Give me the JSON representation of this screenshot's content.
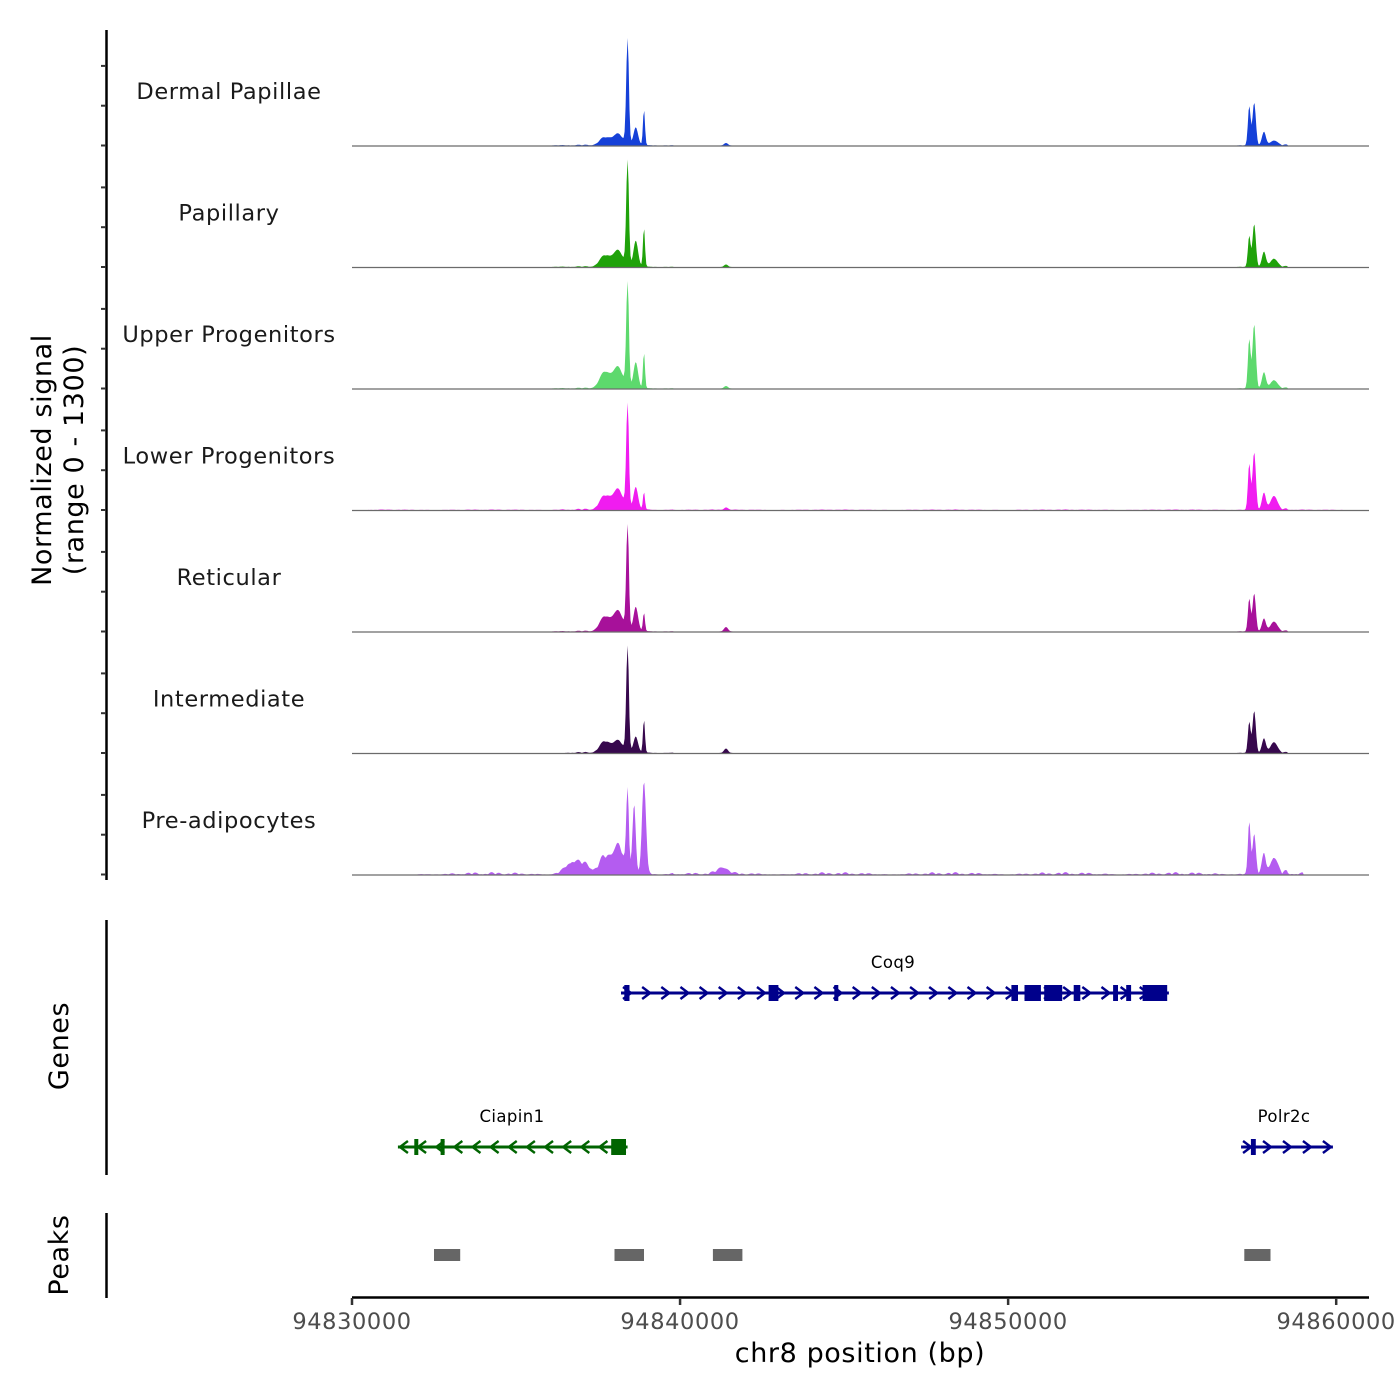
{
  "chart_data": {
    "type": "area",
    "title": "",
    "chrom": "chr8",
    "xlabel": "chr8 position (bp)",
    "xlim": [
      94830000,
      94861000
    ],
    "x_ticks": [
      94830000,
      94840000,
      94850000,
      94860000
    ],
    "x_tick_labels": [
      "94830000",
      "94840000",
      "94850000",
      "94860000"
    ],
    "ylabel_line1": "Normalized signal",
    "ylabel_line2": "(range 0 - 1300)",
    "ylim": [
      0,
      1300
    ],
    "genes_title": "Genes",
    "peaks_title": "Peaks",
    "grid": false,
    "series": [
      {
        "name": "Dermal Papillae",
        "color": "#1540d8",
        "peaks": [
          [
            94837700,
            150,
            90
          ],
          [
            94838100,
            150,
            140
          ],
          [
            94838400,
            40,
            1300
          ],
          [
            94838650,
            70,
            220
          ],
          [
            94838900,
            30,
            440
          ],
          [
            94841400,
            60,
            30
          ],
          [
            94857350,
            40,
            480
          ],
          [
            94857500,
            50,
            520
          ],
          [
            94857800,
            60,
            160
          ],
          [
            94858100,
            100,
            60
          ]
        ],
        "noise_regions": [
          [
            94836000,
            94839800,
            15
          ],
          [
            94856800,
            94858500,
            15
          ]
        ]
      },
      {
        "name": "Papillary",
        "color": "#1fa20a",
        "peaks": [
          [
            94837700,
            150,
            130
          ],
          [
            94838100,
            150,
            200
          ],
          [
            94838400,
            40,
            1300
          ],
          [
            94838650,
            70,
            320
          ],
          [
            94838900,
            30,
            480
          ],
          [
            94841400,
            60,
            30
          ],
          [
            94857350,
            40,
            380
          ],
          [
            94857500,
            50,
            520
          ],
          [
            94857800,
            60,
            180
          ],
          [
            94858100,
            100,
            100
          ]
        ],
        "noise_regions": [
          [
            94836000,
            94839800,
            15
          ],
          [
            94856800,
            94858500,
            15
          ]
        ]
      },
      {
        "name": "Upper Progenitors",
        "color": "#5dd96d",
        "peaks": [
          [
            94837700,
            150,
            190
          ],
          [
            94838100,
            150,
            260
          ],
          [
            94838400,
            40,
            1300
          ],
          [
            94838650,
            70,
            320
          ],
          [
            94838900,
            30,
            440
          ],
          [
            94841400,
            60,
            30
          ],
          [
            94857350,
            40,
            600
          ],
          [
            94857500,
            50,
            780
          ],
          [
            94857800,
            60,
            190
          ],
          [
            94858100,
            100,
            100
          ]
        ],
        "noise_regions": [
          [
            94836000,
            94839800,
            15
          ],
          [
            94856800,
            94858500,
            15
          ]
        ]
      },
      {
        "name": "Lower Progenitors",
        "color": "#f01cf0",
        "peaks": [
          [
            94837700,
            150,
            160
          ],
          [
            94838100,
            150,
            250
          ],
          [
            94838400,
            40,
            1300
          ],
          [
            94838650,
            70,
            280
          ],
          [
            94838900,
            30,
            220
          ],
          [
            94841400,
            60,
            30
          ],
          [
            94857350,
            40,
            560
          ],
          [
            94857500,
            50,
            700
          ],
          [
            94857800,
            60,
            200
          ],
          [
            94858100,
            100,
            170
          ]
        ],
        "noise_regions": [
          [
            94830500,
            94860500,
            7
          ],
          [
            94836000,
            94839800,
            15
          ],
          [
            94856800,
            94858500,
            15
          ]
        ]
      },
      {
        "name": "Reticular",
        "color": "#a7119a",
        "peaks": [
          [
            94837700,
            150,
            170
          ],
          [
            94838100,
            150,
            250
          ],
          [
            94838400,
            40,
            1300
          ],
          [
            94838650,
            70,
            300
          ],
          [
            94838900,
            30,
            230
          ],
          [
            94841400,
            60,
            55
          ],
          [
            94857350,
            40,
            400
          ],
          [
            94857500,
            50,
            460
          ],
          [
            94857800,
            60,
            150
          ],
          [
            94858100,
            100,
            120
          ]
        ],
        "noise_regions": [
          [
            94836000,
            94839800,
            15
          ],
          [
            94856800,
            94858500,
            15
          ]
        ]
      },
      {
        "name": "Intermediate",
        "color": "#37084d",
        "peaks": [
          [
            94837700,
            150,
            130
          ],
          [
            94838100,
            150,
            150
          ],
          [
            94838400,
            40,
            1300
          ],
          [
            94838650,
            70,
            200
          ],
          [
            94838900,
            30,
            410
          ],
          [
            94841400,
            60,
            55
          ],
          [
            94857350,
            40,
            380
          ],
          [
            94857500,
            50,
            510
          ],
          [
            94857800,
            60,
            170
          ],
          [
            94858100,
            100,
            130
          ]
        ],
        "noise_regions": [
          [
            94836500,
            94839800,
            18
          ],
          [
            94856800,
            94858500,
            15
          ]
        ]
      },
      {
        "name": "Pre-adipocytes",
        "color": "#b45cf0",
        "peaks": [
          [
            94836700,
            200,
            130
          ],
          [
            94837100,
            200,
            90
          ],
          [
            94837700,
            150,
            180
          ],
          [
            94838100,
            150,
            350
          ],
          [
            94838400,
            40,
            980
          ],
          [
            94838600,
            50,
            840
          ],
          [
            94838900,
            60,
            1120
          ],
          [
            94841300,
            150,
            80
          ],
          [
            94857350,
            40,
            640
          ],
          [
            94857500,
            50,
            480
          ],
          [
            94857800,
            60,
            230
          ],
          [
            94858100,
            100,
            200
          ]
        ],
        "noise_regions": [
          [
            94832000,
            94859000,
            30
          ],
          [
            94836000,
            94839800,
            40
          ],
          [
            94856800,
            94858500,
            30
          ]
        ]
      }
    ],
    "genes": [
      {
        "name": "Coq9",
        "strand": "+",
        "row": 0,
        "color": "#00008b",
        "start": 94838200,
        "end": 94854900,
        "exons": [
          [
            94838300,
            94838460
          ],
          [
            94842700,
            94843000
          ],
          [
            94844700,
            94844800
          ],
          [
            94850100,
            94850300
          ],
          [
            94850500,
            94851000
          ],
          [
            94851100,
            94851650
          ],
          [
            94852000,
            94852200
          ],
          [
            94853200,
            94853350
          ],
          [
            94853600,
            94853750
          ],
          [
            94854100,
            94854850
          ]
        ]
      },
      {
        "name": "Ciapin1",
        "strand": "-",
        "row": 1,
        "color": "#006400",
        "start": 94831400,
        "end": 94838400,
        "exons": [
          [
            94831900,
            94832000
          ],
          [
            94832700,
            94832800
          ],
          [
            94837900,
            94838350
          ]
        ]
      },
      {
        "name": "Polr2c",
        "strand": "+",
        "row": 1,
        "color": "#00008b",
        "start": 94857100,
        "end": 94859900,
        "exons": [
          [
            94857400,
            94857550
          ]
        ]
      }
    ],
    "peak_regions": [
      [
        94832500,
        94833300
      ],
      [
        94838000,
        94838900
      ],
      [
        94841000,
        94841900
      ],
      [
        94857200,
        94858000
      ]
    ],
    "peak_color": "#666666"
  }
}
